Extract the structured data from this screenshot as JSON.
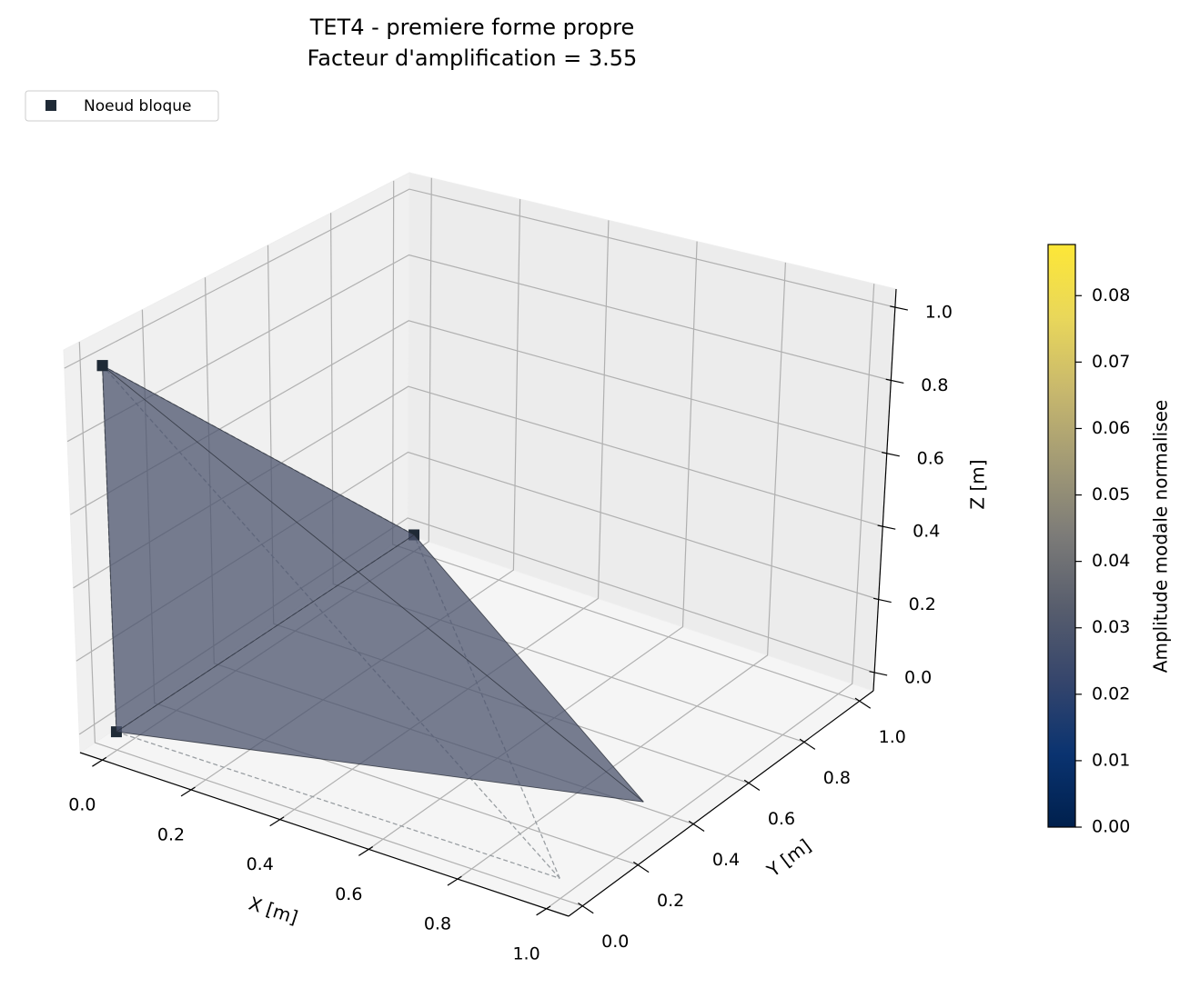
{
  "chart_data": {
    "type": "tetra3d",
    "title": [
      "TET4 - premiere forme propre",
      "Facteur d'amplification = 3.55"
    ],
    "xlabel": "X [m]",
    "ylabel": "Y [m]",
    "zlabel": "Z [m]",
    "xlim": [
      -0.05,
      1.05
    ],
    "ylim": [
      -0.05,
      1.05
    ],
    "zlim": [
      -0.05,
      1.05
    ],
    "xticks": [
      {
        "value": 0,
        "label": "0.0"
      },
      0.2,
      0.4,
      0.6,
      0.8,
      {
        "value": 1,
        "label": "1.0"
      }
    ],
    "yticks": [
      {
        "value": 0,
        "label": "0.0"
      },
      0.2,
      0.4,
      0.6,
      0.8,
      {
        "value": 1,
        "label": "1.0"
      }
    ],
    "zticks": [
      {
        "value": 0,
        "label": "0.0"
      },
      0.2,
      0.4,
      0.6,
      0.8,
      {
        "value": 1,
        "label": "1.0"
      }
    ],
    "grid": true,
    "nodes": [
      [
        0,
        0,
        0
      ],
      [
        1,
        0,
        0
      ],
      [
        0,
        1,
        0
      ],
      [
        0,
        0,
        1
      ]
    ],
    "deformed_nodes": [
      [
        0,
        0,
        0
      ],
      [
        1,
        0.3,
        0.04
      ],
      [
        0,
        1,
        0
      ],
      [
        0,
        0,
        1
      ]
    ],
    "faces": [
      [
        0,
        1,
        2
      ],
      [
        0,
        1,
        3
      ],
      [
        0,
        2,
        3
      ],
      [
        1,
        2,
        3
      ]
    ],
    "face_values": [
      0.029,
      0.029,
      0.029,
      0.029
    ],
    "blocked_nodes": [
      0,
      2,
      3
    ],
    "legend": {
      "label": "Noeud bloque",
      "color": "#1f2a36",
      "position": "upper left"
    },
    "colorbar": {
      "label": "Amplitude modale normalisee",
      "clim": [
        0,
        0.0877
      ],
      "ticks": [
        {
          "value": 0,
          "label": "0.00"
        },
        0.01,
        0.02,
        0.03,
        0.04,
        0.05,
        0.06,
        0.07,
        0.08
      ],
      "colormap": [
        "#00204d",
        "#0a3370",
        "#35456c",
        "#575d6d",
        "#7c7b78",
        "#a29a75",
        "#c8b86d",
        "#e9d75a",
        "#fde737"
      ]
    },
    "undeformed_color": "#9a9fa3",
    "edge_color": "#2a2f3a"
  }
}
